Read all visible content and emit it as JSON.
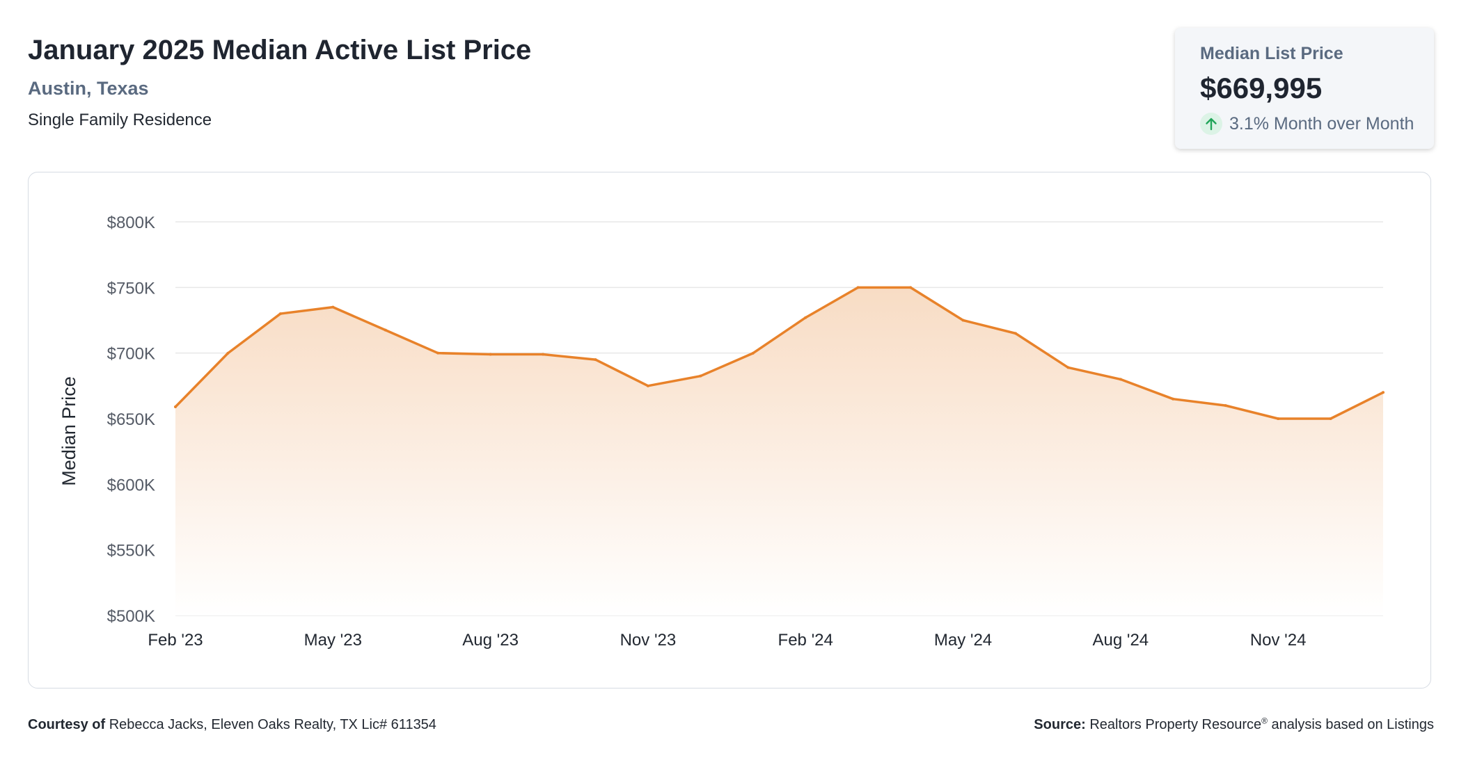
{
  "header": {
    "title": "January 2025 Median Active List Price",
    "location": "Austin, Texas",
    "property_type": "Single Family Residence"
  },
  "stat_card": {
    "label": "Median List Price",
    "value": "$669,995",
    "change_text": "3.1% Month over Month",
    "change_direction": "up",
    "icon": "arrow-up-icon"
  },
  "footer": {
    "courtesy_label": "Courtesy of",
    "courtesy_text": "Rebecca Jacks, Eleven Oaks Realty, TX Lic# 611354",
    "source_label": "Source:",
    "source_text_1": "Realtors Property Resource",
    "source_mark": "®",
    "source_text_2": " analysis based on Listings"
  },
  "colors": {
    "line": "#e8822a",
    "area_top": "#f8dcc4",
    "area_bottom": "#ffffff",
    "grid": "#e7e7e7",
    "accent_text": "#5a6a80",
    "up_arrow": "#22a55a",
    "up_arrow_bg": "#dcf3e6"
  },
  "chart_data": {
    "type": "area",
    "title": "",
    "xlabel": "",
    "ylabel": "Median Price",
    "x": [
      "Feb '23",
      "Mar '23",
      "Apr '23",
      "May '23",
      "Jun '23",
      "Jul '23",
      "Aug '23",
      "Sep '23",
      "Oct '23",
      "Nov '23",
      "Dec '23",
      "Jan '24",
      "Feb '24",
      "Mar '24",
      "Apr '24",
      "May '24",
      "Jun '24",
      "Jul '24",
      "Aug '24",
      "Sep '24",
      "Oct '24",
      "Nov '24",
      "Dec '24",
      "Jan '25"
    ],
    "series": [
      {
        "values": [
          659000,
          699900,
          730000,
          735000,
          717500,
          700000,
          699000,
          699000,
          695000,
          675000,
          682500,
          699900,
          727000,
          750000,
          750000,
          725000,
          715000,
          689000,
          680000,
          665000,
          660000,
          650000,
          650000,
          669995
        ]
      }
    ],
    "x_tick_labels": [
      "Feb '23",
      "May '23",
      "Aug '23",
      "Nov '23",
      "Feb '24",
      "May '24",
      "Aug '24",
      "Nov '24"
    ],
    "y_ticks": [
      500000,
      550000,
      600000,
      650000,
      700000,
      750000,
      800000
    ],
    "y_tick_labels": [
      "$500K",
      "$550K",
      "$600K",
      "$650K",
      "$700K",
      "$750K",
      "$800K"
    ],
    "ylim": [
      500000,
      800000
    ],
    "grid": "horizontal",
    "legend": "none"
  }
}
